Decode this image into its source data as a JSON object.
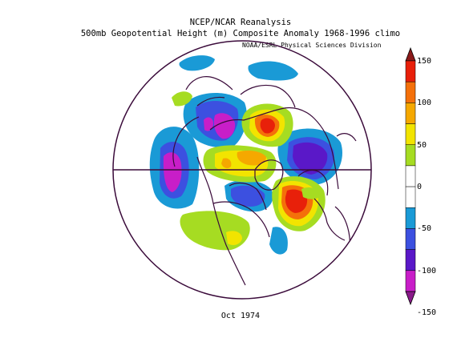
{
  "header": {
    "title_line1": "NCEP/NCAR Reanalysis",
    "title_line2": "500mb Geopotential Height (m) Composite Anomaly 1968-1996 climo",
    "credit": "NOAA/ESRL Physical Sciences Division"
  },
  "footer": {
    "date": "Oct 1974"
  },
  "colorbar": {
    "labels": [
      "150",
      "100",
      "50",
      "0",
      "-50",
      "-100",
      "-150"
    ],
    "colors": [
      "#8b1a1a",
      "#e8200a",
      "#f4700a",
      "#f5a800",
      "#f2e400",
      "#a6dc22",
      "#ffffff",
      "#ffffff",
      "#1a9ad6",
      "#3c50e0",
      "#5a18c8",
      "#c81ec8",
      "#8a1a8a"
    ]
  }
}
